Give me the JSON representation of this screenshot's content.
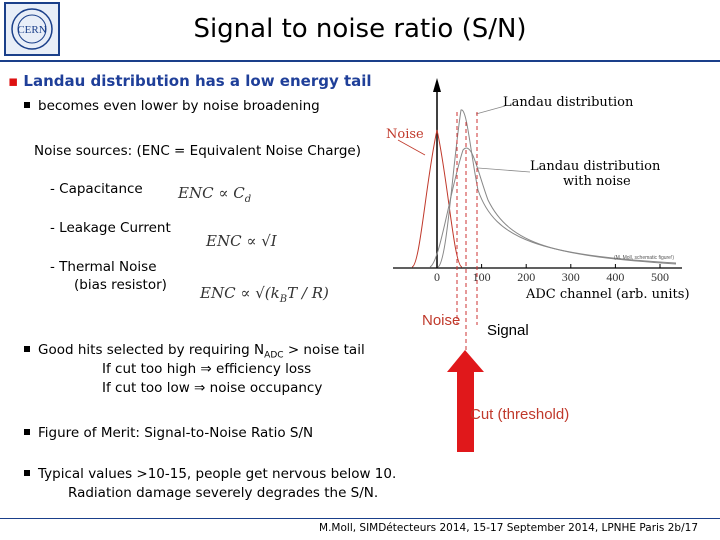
{
  "slide": {
    "title": "Signal to noise ratio (S/N)",
    "bullet_main": "Landau distribution has a low energy tail",
    "sub_bullet": "becomes even lower by noise broadening",
    "noise_sources": "Noise sources: (ENC = Equivalent Noise Charge)",
    "sources": [
      {
        "label": "- Capacitance",
        "formula": "ENC ∝ C",
        "formula_sub": "d"
      },
      {
        "label": "- Leakage Current",
        "formula": "ENC ∝ √I"
      },
      {
        "label": "- Thermal Noise",
        "label2": "(bias resistor)",
        "formula": "ENC ∝ √(k",
        "formula_sub": "B",
        "formula_rest": "T / R)"
      }
    ],
    "good_hits": {
      "prefix": "Good hits selected by requiring N",
      "sub": "ADC",
      "suffix": " > noise tail",
      "line2_a": "If cut too high",
      "line2_b": "efficiency loss",
      "line3_a": "If cut too low",
      "line3_b": "noise occupancy",
      "arrow": "⇒"
    },
    "figure_of_merit": "Figure of Merit: Signal-to-Noise Ratio S/N",
    "typical_1": "Typical values >10-15, people get nervous below 10.",
    "typical_2": "Radiation damage severely degrades the S/N.",
    "footer": "M.Moll, SIMDétecteurs 2014, 15-17 September 2014, LPNHE Paris",
    "page": "2b/17",
    "logo_text": "CERN"
  },
  "chart_data": {
    "type": "line",
    "xlabel": "ADC channel (arb. units)",
    "x_ticks": [
      0,
      100,
      200,
      300,
      400,
      500
    ],
    "xlim": [
      0,
      500
    ],
    "curve_labels": [
      "Noise",
      "Landau distribution",
      "Landau distribution with noise"
    ],
    "small_note": "(M. Moll, schematic figure!)",
    "noise_label": "Noise",
    "signal_label": "Signal",
    "cut_label": "Cut (threshold)",
    "colors": {
      "noise": "#c0392b",
      "axis": "#000000",
      "curves": "#888888",
      "dash": "#cc3333",
      "arrow": "#e0181b",
      "blue": "#1f3f99"
    }
  }
}
